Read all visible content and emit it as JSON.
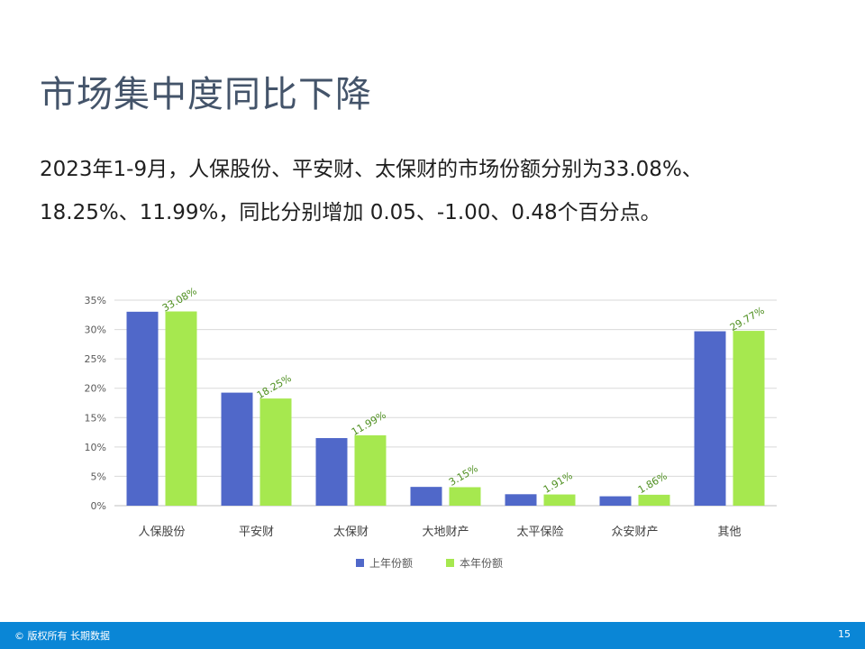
{
  "slide": {
    "title": "市场集中度同比下降",
    "paragraph_line1": "2023年1-9月，人保股份、平安财、太保财的市场份额分别为33.08%、",
    "paragraph_line2": "18.25%、11.99%，同比分别增加 0.05、-1.00、0.48个百分点。"
  },
  "chart_data": {
    "type": "bar",
    "title": "",
    "xlabel": "",
    "ylabel": "",
    "categories": [
      "人保股份",
      "平安财",
      "太保财",
      "大地财产",
      "太平保险",
      "众安财产",
      "其他"
    ],
    "series": [
      {
        "name": "上年份额",
        "color": "#5068c9",
        "values": [
          33.03,
          19.25,
          11.51,
          3.2,
          1.95,
          1.6,
          29.7
        ]
      },
      {
        "name": "本年份额",
        "color": "#a6e84f",
        "values": [
          33.08,
          18.25,
          11.99,
          3.15,
          1.91,
          1.86,
          29.77
        ]
      }
    ],
    "data_labels": [
      "33.08%",
      "18.25%",
      "11.99%",
      "3.15%",
      "1.91%",
      "1.86%",
      "29.77%"
    ],
    "y_ticks": [
      "0%",
      "5%",
      "10%",
      "15%",
      "20%",
      "25%",
      "30%",
      "35%"
    ],
    "ylim": [
      0,
      35
    ],
    "grid": true,
    "legend_position": "bottom",
    "data_label_color": "#4e8f1f"
  },
  "footer": {
    "copyright": "© 版权所有 长期数据",
    "page_number": "15"
  }
}
